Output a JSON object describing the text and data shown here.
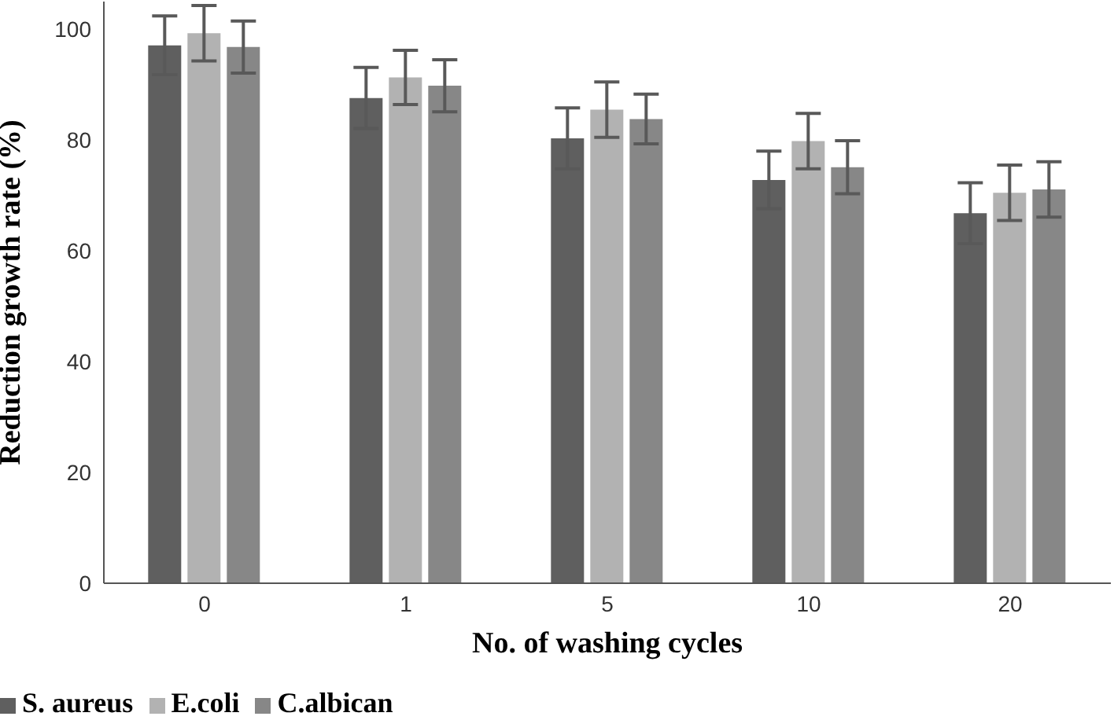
{
  "chart_data": {
    "type": "bar",
    "xlabel": "No. of washing cycles",
    "ylabel": "Reduction growth rate (%)",
    "categories": [
      "0",
      "1",
      "5",
      "10",
      "20"
    ],
    "series": [
      {
        "name": "S. aureus",
        "color": "#5f5f5f",
        "values": [
          97.1,
          87.6,
          80.3,
          72.8,
          66.8
        ],
        "errors": [
          5.3,
          5.5,
          5.5,
          5.2,
          5.5
        ]
      },
      {
        "name": "E.coli",
        "color": "#b2b2b2",
        "values": [
          99.3,
          91.3,
          85.5,
          79.8,
          70.5
        ],
        "errors": [
          5,
          4.9,
          5,
          5,
          5
        ]
      },
      {
        "name": "C.albican",
        "color": "#878787",
        "values": [
          96.8,
          89.8,
          83.8,
          75.1,
          71.1
        ],
        "errors": [
          4.7,
          4.7,
          4.5,
          4.8,
          5
        ]
      }
    ],
    "ylim": [
      0,
      105
    ],
    "yticks": [
      0,
      20,
      40,
      60,
      80,
      100
    ],
    "grid": false,
    "legend": "bottom left"
  }
}
